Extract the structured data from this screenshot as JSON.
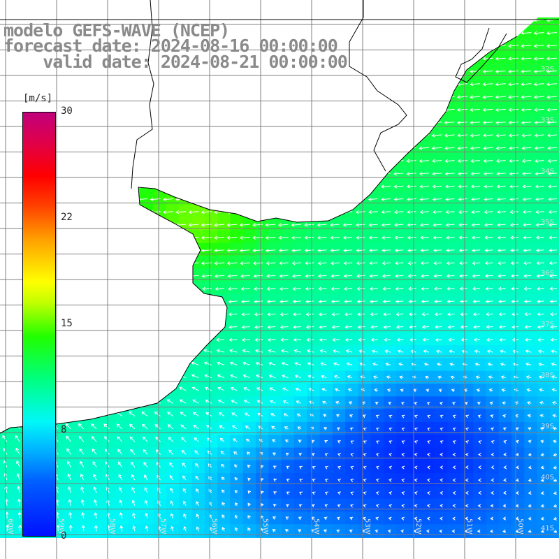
{
  "header": {
    "line1": "modelo GEFS-WAVE (NCEP)",
    "line2": "forecast date: 2024-08-16 00:00:00",
    "line3": "    valid date: 2024-08-21 00:00:00"
  },
  "colorbar": {
    "unit": "[m/s]",
    "ticks": [
      "30",
      "22",
      "15",
      "8",
      "0"
    ],
    "tick_values": [
      30,
      22,
      15,
      8,
      0
    ],
    "range": [
      0,
      30
    ],
    "colors": [
      "#0010ff",
      "#00b0ff",
      "#00f8f8",
      "#00ff80",
      "#20ff00",
      "#ffff00",
      "#ff8000",
      "#ff0000",
      "#c0007c"
    ]
  },
  "grid": {
    "lat_labels": [
      "32S",
      "33S",
      "34S",
      "35S",
      "36S",
      "37S",
      "38S",
      "39S",
      "40S",
      "41S"
    ],
    "lon_labels": [
      "60W",
      "59W",
      "58W",
      "57W",
      "56W",
      "55W",
      "54W",
      "53W",
      "52W",
      "51W",
      "50W"
    ]
  },
  "map": {
    "variable": "wind speed with direction arrows",
    "land_color": "#ffffff",
    "coast_color": "#000000",
    "grid_color": "#7f7f7f",
    "arrow_color": "#ffffff"
  }
}
